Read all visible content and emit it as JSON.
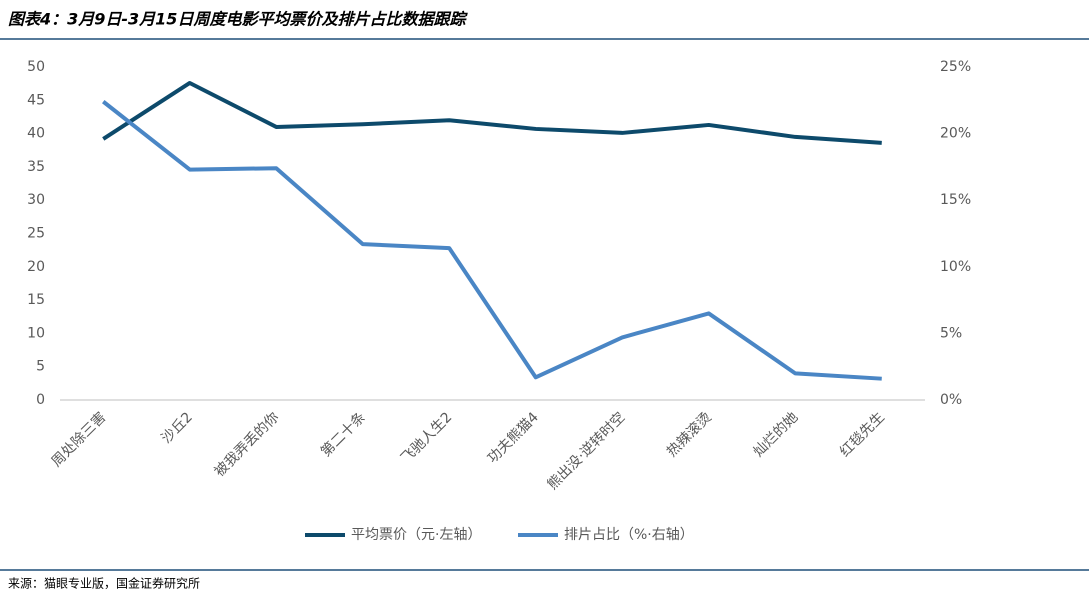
{
  "chart_data": {
    "type": "line",
    "title": "图表4：3月9日-3月15日周度电影平均票价及排片占比数据跟踪",
    "source": "来源：猫眼专业版，国金证券研究所",
    "categories": [
      "周处除三害",
      "沙丘2",
      "被我弄丢的你",
      "第二十条",
      "飞驰人生2",
      "功夫熊猫4",
      "熊出没·逆转时空",
      "热辣滚烫",
      "灿烂的她",
      "红毯先生"
    ],
    "series": [
      {
        "name": "平均票价（元·左轴）",
        "color": "#0d4a6b",
        "values": [
          39.2,
          47.6,
          41.0,
          41.4,
          42.0,
          40.7,
          40.1,
          41.3,
          39.5,
          38.6
        ]
      },
      {
        "name": "排片占比（%·右轴）",
        "color": "#4a86c5",
        "axis": "y2",
        "values": [
          22.4,
          17.3,
          17.4,
          11.7,
          11.4,
          1.7,
          4.7,
          6.5,
          2.0,
          1.6
        ]
      }
    ],
    "ylim": [
      0,
      50
    ],
    "yticks": [
      0,
      5,
      10,
      15,
      20,
      25,
      30,
      35,
      40,
      45,
      50
    ],
    "y2lim": [
      0,
      25
    ],
    "y2ticks": [
      {
        "value": 0,
        "label": "0%"
      },
      {
        "value": 5,
        "label": "5%"
      },
      {
        "value": 10,
        "label": "10%"
      },
      {
        "value": 15,
        "label": "15%"
      },
      {
        "value": 20,
        "label": "20%"
      },
      {
        "value": 25,
        "label": "25%"
      }
    ],
    "legend": "bottom"
  }
}
